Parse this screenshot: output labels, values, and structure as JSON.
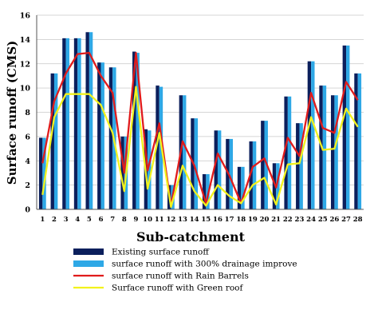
{
  "chart_data": {
    "type": "bar",
    "title": "",
    "xlabel": "Sub-catchment",
    "ylabel": "Surface runoff (CMS)",
    "ylim": [
      0,
      16
    ],
    "yticks": [
      0,
      2,
      4,
      6,
      8,
      10,
      12,
      14,
      16
    ],
    "grid": "horizontal",
    "legend_position": "bottom",
    "categories": [
      "1",
      "2",
      "3",
      "4",
      "5",
      "6",
      "7",
      "8",
      "9",
      "10",
      "11",
      "12",
      "13",
      "14",
      "15",
      "16",
      "17",
      "18",
      "19",
      "20",
      "21",
      "22",
      "23",
      "24",
      "25",
      "26",
      "27",
      "28"
    ],
    "series": [
      {
        "name": "Existing surface runoff",
        "kind": "bar",
        "color": "#0b1f5c",
        "values": [
          5.9,
          11.2,
          14.1,
          14.1,
          14.6,
          12.1,
          11.7,
          6.0,
          13.0,
          6.6,
          10.2,
          2.0,
          9.4,
          7.5,
          2.9,
          6.5,
          5.8,
          3.5,
          5.6,
          7.3,
          3.8,
          9.3,
          7.1,
          12.2,
          10.2,
          9.4,
          13.5,
          11.2
        ]
      },
      {
        "name": "surface runoff with 300% drainage improve",
        "kind": "bar",
        "color": "#2ea8e6",
        "values": [
          5.9,
          11.2,
          14.1,
          14.1,
          14.6,
          12.1,
          11.7,
          6.0,
          12.9,
          6.5,
          10.1,
          2.0,
          9.4,
          7.5,
          2.9,
          6.5,
          5.8,
          3.5,
          5.6,
          7.3,
          3.8,
          9.3,
          7.1,
          12.2,
          10.2,
          9.4,
          13.5,
          11.2
        ]
      },
      {
        "name": "surface runoff with Rain Barrels",
        "kind": "line",
        "color": "#e01b1b",
        "values": [
          3.8,
          8.9,
          11.2,
          12.8,
          12.9,
          11.0,
          9.6,
          3.0,
          12.9,
          3.2,
          7.1,
          0.3,
          5.6,
          3.6,
          0.5,
          4.6,
          2.8,
          0.5,
          3.5,
          4.2,
          1.8,
          5.9,
          4.4,
          9.6,
          6.7,
          6.3,
          10.5,
          9.0
        ]
      },
      {
        "name": "Surface runoff with Green roof",
        "kind": "line",
        "color": "#f2f21c",
        "values": [
          1.2,
          7.6,
          9.5,
          9.5,
          9.5,
          8.6,
          6.3,
          1.5,
          10.1,
          1.7,
          6.3,
          0.2,
          3.6,
          1.5,
          0.3,
          2.0,
          1.1,
          0.5,
          2.0,
          2.6,
          0.4,
          3.7,
          3.8,
          7.6,
          4.9,
          5.0,
          8.3,
          6.8
        ]
      }
    ]
  }
}
